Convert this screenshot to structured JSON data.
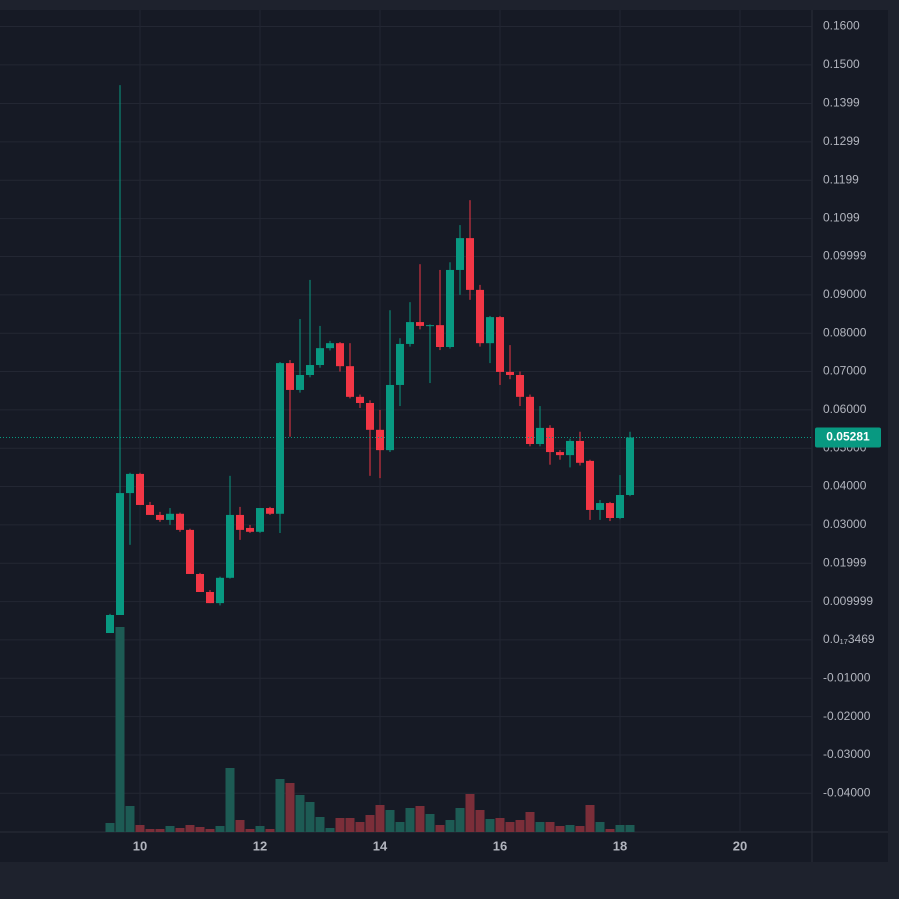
{
  "chart_data": {
    "type": "candlestick",
    "x": [
      9.5,
      9.6667,
      9.8333,
      10,
      10.1667,
      10.3333,
      10.5,
      10.6667,
      10.8333,
      11,
      11.1667,
      11.3333,
      11.5,
      11.6667,
      11.8333,
      12,
      12.1667,
      12.3333,
      12.5,
      12.6667,
      12.8333,
      13,
      13.1667,
      13.3333,
      13.5,
      13.6667,
      13.8333,
      14,
      14.1667,
      14.3333,
      14.5,
      14.6667,
      14.8333,
      15,
      15.1667,
      15.3333,
      15.5,
      15.6667,
      15.8333,
      16,
      16.1667,
      16.3333,
      16.5,
      16.6667,
      16.8333,
      17,
      17.1667,
      17.3333,
      17.5,
      17.6667,
      17.8333,
      18,
      18.1667
    ],
    "open": [
      0.0018,
      0.0065,
      0.0383,
      0.0433,
      0.0352,
      0.0326,
      0.0313,
      0.0329,
      0.0287,
      0.0172,
      0.0125,
      0.0096,
      0.0162,
      0.0326,
      0.0292,
      0.0282,
      0.0344,
      0.0329,
      0.0722,
      0.0652,
      0.0691,
      0.0717,
      0.0761,
      0.0774,
      0.0714,
      0.0634,
      0.0618,
      0.0548,
      0.0495,
      0.0665,
      0.0772,
      0.0829,
      0.0819,
      0.0821,
      0.0764,
      0.0965,
      0.1048,
      0.0913,
      0.0774,
      0.0842,
      0.0699,
      0.0691,
      0.0634,
      0.0511,
      0.0553,
      0.049,
      0.0482,
      0.0519,
      0.0467,
      0.0339,
      0.0357,
      0.0318,
      0.0378
    ],
    "high": [
      0.0068,
      0.1447,
      0.0436,
      0.0436,
      0.036,
      0.0334,
      0.0344,
      0.0332,
      0.029,
      0.0175,
      0.013,
      0.0165,
      0.0428,
      0.0347,
      0.03,
      0.0344,
      0.0347,
      0.0725,
      0.073,
      0.0837,
      0.0939,
      0.0819,
      0.078,
      0.0777,
      0.0774,
      0.064,
      0.0625,
      0.06,
      0.086,
      0.0787,
      0.0881,
      0.098,
      0.0823,
      0.0965,
      0.0985,
      0.1082,
      0.1147,
      0.0926,
      0.0845,
      0.0845,
      0.0769,
      0.07,
      0.064,
      0.061,
      0.056,
      0.0495,
      0.0525,
      0.0543,
      0.047,
      0.0365,
      0.036,
      0.043,
      0.0543
    ],
    "low": [
      0.0018,
      0.0065,
      0.0248,
      0.0352,
      0.0326,
      0.0308,
      0.03,
      0.0282,
      0.0172,
      0.0125,
      0.0096,
      0.009,
      0.016,
      0.0261,
      0.0279,
      0.0279,
      0.0326,
      0.0279,
      0.053,
      0.0645,
      0.0685,
      0.071,
      0.0755,
      0.07,
      0.063,
      0.0605,
      0.0428,
      0.0422,
      0.049,
      0.061,
      0.0765,
      0.081,
      0.067,
      0.0756,
      0.076,
      0.09,
      0.0887,
      0.0765,
      0.0722,
      0.0665,
      0.068,
      0.061,
      0.0505,
      0.0505,
      0.0457,
      0.047,
      0.045,
      0.0455,
      0.0313,
      0.0313,
      0.031,
      0.0315,
      0.0375
    ],
    "close": [
      0.0065,
      0.0383,
      0.0433,
      0.0352,
      0.0326,
      0.0313,
      0.0329,
      0.0287,
      0.0172,
      0.0125,
      0.0096,
      0.0162,
      0.0326,
      0.0287,
      0.0282,
      0.0344,
      0.0329,
      0.0722,
      0.0652,
      0.0691,
      0.0717,
      0.0761,
      0.0774,
      0.0714,
      0.0634,
      0.0618,
      0.0548,
      0.0495,
      0.0665,
      0.0772,
      0.0829,
      0.0819,
      0.0821,
      0.0764,
      0.0965,
      0.1048,
      0.0913,
      0.0774,
      0.0842,
      0.0699,
      0.0691,
      0.0634,
      0.0511,
      0.0553,
      0.049,
      0.0482,
      0.0519,
      0.0462,
      0.0339,
      0.0357,
      0.0318,
      0.0378,
      0.0528
    ],
    "volume": [
      9,
      205,
      26,
      7,
      3,
      3,
      6,
      4,
      7,
      5,
      3,
      6,
      64,
      12,
      3,
      6,
      3,
      53,
      49,
      37,
      30,
      15,
      4,
      14,
      14,
      10,
      17,
      27,
      22,
      10,
      24,
      26,
      18,
      7,
      12,
      24,
      38,
      22,
      13,
      14,
      10,
      12,
      20,
      10,
      10,
      6,
      7,
      6,
      27,
      10,
      3,
      7,
      7
    ],
    "up_color": "#089981",
    "down_color": "#f23645",
    "up_volume_color": "#1d5b54",
    "down_volume_color": "#7b2e39",
    "xlim": [
      7.6667,
      21.2
    ],
    "xticks": [
      10,
      12,
      14,
      16,
      18,
      20
    ],
    "ylim": [
      -0.0501,
      0.1643
    ],
    "yticks": [
      {
        "value": 0.16,
        "label": "0.1600"
      },
      {
        "value": 0.15,
        "label": "0.1500"
      },
      0.1399,
      0.1299,
      0.1199,
      0.1099,
      0.09999,
      {
        "value": 0.09,
        "label": "0.09000"
      },
      {
        "value": 0.08,
        "label": "0.08000"
      },
      {
        "value": 0.07,
        "label": "0.07000"
      },
      {
        "value": 0.06,
        "label": "0.06000"
      },
      {
        "value": 0.05,
        "label": "0.05000"
      },
      {
        "value": 0.04,
        "label": "0.04000"
      },
      {
        "value": 0.03,
        "label": "0.03000"
      },
      0.01999,
      0.009999,
      {
        "value": 3.469e-18,
        "label": "0.0₁₇3469"
      },
      {
        "value": -0.01,
        "label": "-0.01000"
      },
      {
        "value": -0.02,
        "label": "-0.02000"
      },
      {
        "value": -0.03,
        "label": "-0.03000"
      },
      {
        "value": -0.04,
        "label": "-0.04000"
      }
    ],
    "last_price": 0.05281,
    "grid": true
  }
}
